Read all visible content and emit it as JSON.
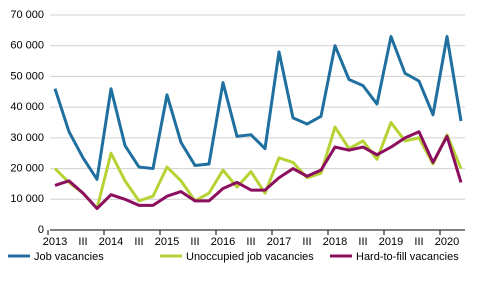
{
  "chart_data": {
    "type": "line",
    "categories": [
      "2013",
      null,
      "III",
      null,
      "2014",
      null,
      "III",
      null,
      "2015",
      null,
      "III",
      null,
      "2016",
      null,
      "III",
      null,
      "2017",
      null,
      "III",
      null,
      "2018",
      null,
      "III",
      null,
      "2019",
      null,
      "III",
      null,
      "2020",
      null
    ],
    "series": [
      {
        "name": "Job vacancies",
        "color": "#1f6f9f",
        "values": [
          46000,
          32000,
          23500,
          16500,
          46000,
          27500,
          20500,
          20000,
          44000,
          28500,
          21000,
          21500,
          48000,
          30500,
          31000,
          26500,
          58000,
          36500,
          34500,
          37000,
          60000,
          49000,
          47000,
          41000,
          63000,
          51000,
          48500,
          37500,
          63000,
          35500
        ]
      },
      {
        "name": "Unoccupied job vacancies",
        "color": "#b5d334",
        "values": [
          20000,
          15500,
          12000,
          7000,
          25000,
          16000,
          9500,
          11000,
          20500,
          16000,
          9500,
          12000,
          19500,
          14000,
          19000,
          12000,
          23500,
          22000,
          17000,
          18500,
          33500,
          26500,
          29000,
          23000,
          35000,
          29000,
          30000,
          21500,
          31000,
          20000
        ]
      },
      {
        "name": "Hard-to-fill vacancies",
        "color": "#8c0f5f",
        "values": [
          14500,
          16000,
          12000,
          7000,
          11500,
          10000,
          8000,
          8000,
          11000,
          12500,
          9500,
          9500,
          13500,
          15500,
          13000,
          13000,
          17000,
          20000,
          17500,
          19500,
          27000,
          26000,
          27000,
          24500,
          27000,
          30000,
          32000,
          22000,
          30500,
          15500
        ]
      }
    ],
    "ylim": [
      0,
      70000
    ],
    "yticks": [
      0,
      {
        "value": 10000,
        "label": "10 000"
      },
      {
        "value": 20000,
        "label": "20 000"
      },
      {
        "value": 30000,
        "label": "30 000"
      },
      {
        "value": 40000,
        "label": "40 000"
      },
      {
        "value": 50000,
        "label": "50 000"
      },
      {
        "value": 60000,
        "label": "60 000"
      },
      {
        "value": 70000,
        "label": "70 000"
      }
    ],
    "grid": true
  }
}
